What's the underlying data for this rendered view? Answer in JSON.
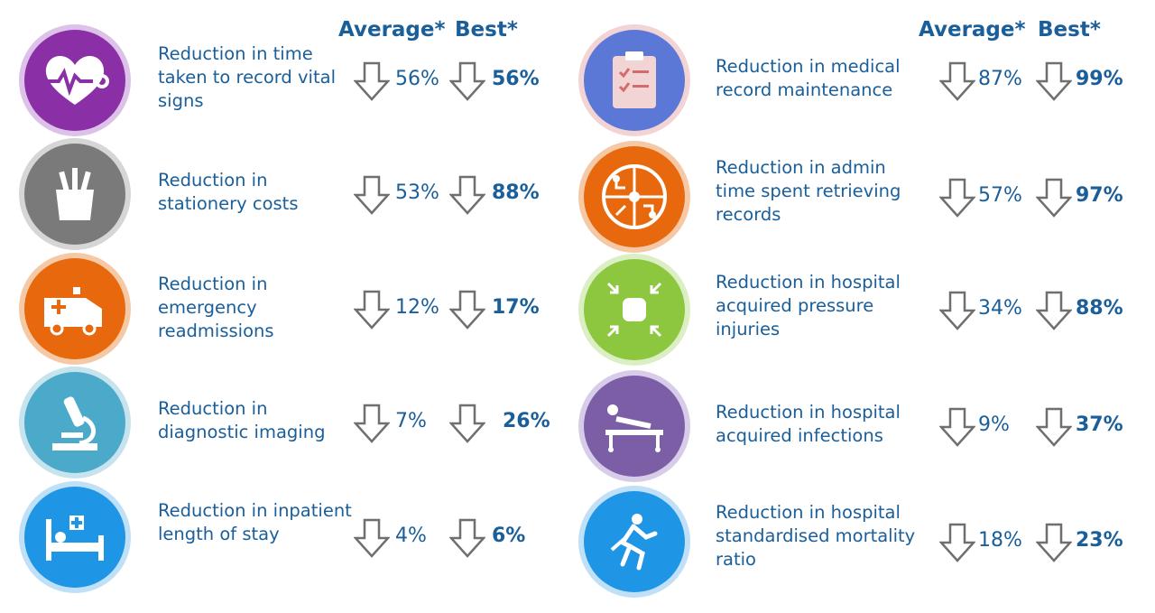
{
  "headers": {
    "left_average": "Average*",
    "left_best": "Best*",
    "right_average": "Average*",
    "right_best": "Best*"
  },
  "metrics": [
    {
      "label": "Reduction in time taken to record vital signs",
      "average": "56%",
      "best": "56%",
      "icon": "heart-monitor-icon",
      "color": "#8a2fa6",
      "ring": "#dcc2e8"
    },
    {
      "label": "Reduction in stationery costs",
      "average": "53%",
      "best": "88%",
      "icon": "pencil-cup-icon",
      "color": "#7a7a7a",
      "ring": "#d6d6d6"
    },
    {
      "label": "Reduction in emergency readmissions",
      "average": "12%",
      "best": "17%",
      "icon": "ambulance-icon",
      "color": "#e8680d",
      "ring": "#f6c9a6"
    },
    {
      "label": "Reduction in diagnostic imaging",
      "average": "7%",
      "best": "26%",
      "icon": "microscope-icon",
      "color": "#4ba9c9",
      "ring": "#c7e3ee"
    },
    {
      "label": "Reduction in inpatient length of stay",
      "average": "4%",
      "best": "6%",
      "icon": "hospital-bed-icon",
      "color": "#1f95e6",
      "ring": "#bfe0f7"
    },
    {
      "label": "Reduction in medical record maintenance",
      "average": "87%",
      "best": "99%",
      "icon": "clipboard-checklist-icon",
      "color": "#5b78d6",
      "ring": "#f3d4d4"
    },
    {
      "label": "Reduction in admin time spent retrieving records",
      "average": "57%",
      "best": "97%",
      "icon": "circuit-network-icon",
      "color": "#e8680d",
      "ring": "#f6c9a6"
    },
    {
      "label": "Reduction in hospital acquired pressure injuries",
      "average": "34%",
      "best": "88%",
      "icon": "pressure-compress-icon",
      "color": "#8dc63f",
      "ring": "#dcefc4"
    },
    {
      "label": "Reduction in hospital acquired infections",
      "average": "9%",
      "best": "37%",
      "icon": "patient-stretcher-icon",
      "color": "#7b5ea6",
      "ring": "#d8cde8"
    },
    {
      "label": "Reduction in hospital standardised mortality ratio",
      "average": "18%",
      "best": "23%",
      "icon": "emergency-rescue-icon",
      "color": "#1f95e6",
      "ring": "#bfe0f7"
    }
  ]
}
